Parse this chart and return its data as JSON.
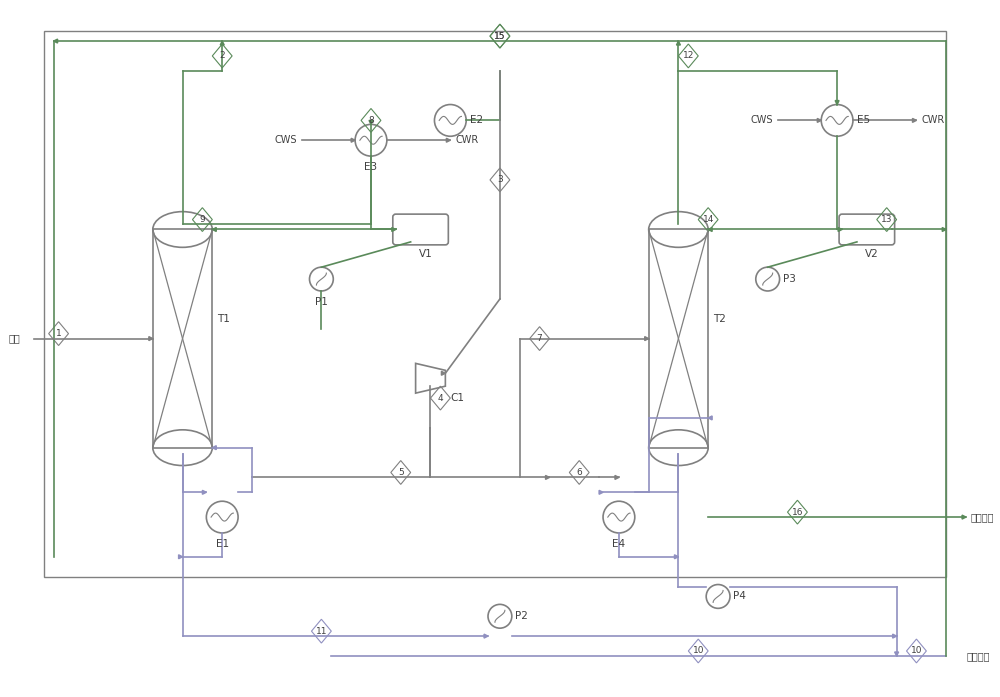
{
  "bg_color": "#ffffff",
  "line_color": "#808080",
  "pipe_color_main": "#808080",
  "pipe_color_green": "#5a8a5a",
  "pipe_color_purple": "#9090c0",
  "border_color": "#808080",
  "text_color": "#404040",
  "title": "",
  "figsize": [
    10.0,
    6.97
  ],
  "dpi": 100,
  "stream_labels": [
    "1",
    "2",
    "3",
    "4",
    "5",
    "6",
    "7",
    "8",
    "9",
    "10",
    "11",
    "12",
    "13",
    "14",
    "15",
    "16"
  ],
  "equipment_labels": [
    "T1",
    "T2",
    "E1",
    "E2",
    "E3",
    "E4",
    "E5",
    "V1",
    "V2",
    "P1",
    "P2",
    "P3",
    "P4",
    "C1"
  ],
  "annotations": {
    "feed": "进料",
    "product_ethanol": "乙醇产品",
    "product_methanol": "甲醇产品",
    "CWS_left": "CWS",
    "CWR_left": "CWR",
    "CWS_right": "CWS",
    "CWR_right": "CWR"
  }
}
